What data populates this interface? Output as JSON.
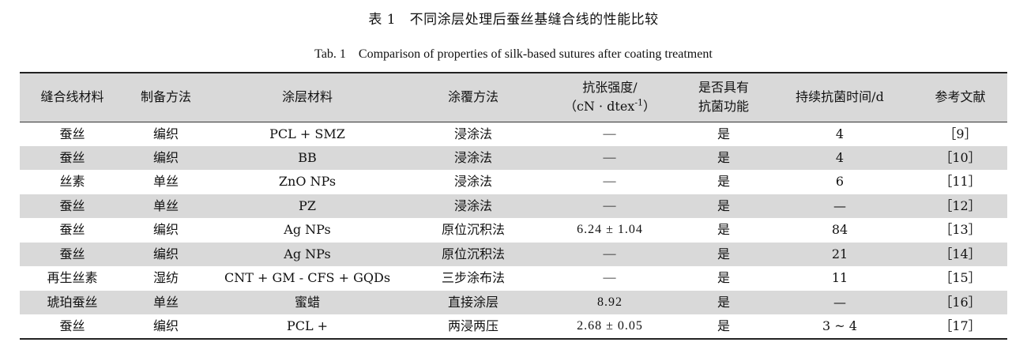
{
  "caption": {
    "cn": "表 1　不同涂层处理后蚕丝基缝合线的性能比较",
    "en": "Tab. 1　Comparison of properties of silk-based sutures after coating treatment"
  },
  "table": {
    "headers": {
      "material": "缝合线材料",
      "prep": "制备方法",
      "coating": "涂层材料",
      "method": "涂覆方法",
      "strength_line1": "抗张强度/",
      "strength_line2_pre": "（cN · dtex",
      "strength_line2_sup": "-1",
      "strength_line2_post": "）",
      "antibac_line1": "是否具有",
      "antibac_line2": "抗菌功能",
      "duration": "持续抗菌时间/d",
      "ref": "参考文献"
    },
    "rows": [
      {
        "material": "蚕丝",
        "prep": "编织",
        "coating": "PCL + SMZ",
        "method": "浸涂法",
        "strength": "—",
        "antibac": "是",
        "duration": "4",
        "ref": "［9］"
      },
      {
        "material": "蚕丝",
        "prep": "编织",
        "coating": "BB",
        "method": "浸涂法",
        "strength": "—",
        "antibac": "是",
        "duration": "4",
        "ref": "［10］"
      },
      {
        "material": "丝素",
        "prep": "单丝",
        "coating": "ZnO NPs",
        "method": "浸涂法",
        "strength": "—",
        "antibac": "是",
        "duration": "6",
        "ref": "［11］"
      },
      {
        "material": "蚕丝",
        "prep": "单丝",
        "coating": "PZ",
        "method": "浸涂法",
        "strength": "—",
        "antibac": "是",
        "duration": "—",
        "ref": "［12］"
      },
      {
        "material": "蚕丝",
        "prep": "编织",
        "coating": "Ag NPs",
        "method": "原位沉积法",
        "strength": "6.24 ± 1.04",
        "antibac": "是",
        "duration": "84",
        "ref": "［13］"
      },
      {
        "material": "蚕丝",
        "prep": "编织",
        "coating": "Ag NPs",
        "method": "原位沉积法",
        "strength": "—",
        "antibac": "是",
        "duration": "21",
        "ref": "［14］"
      },
      {
        "material": "再生丝素",
        "prep": "湿纺",
        "coating": "CNT + GM - CFS + GQDs",
        "method": "三步涂布法",
        "strength": "—",
        "antibac": "是",
        "duration": "11",
        "ref": "［15］"
      },
      {
        "material": "琥珀蚕丝",
        "prep": "单丝",
        "coating": "蜜蜡",
        "method": "直接涂层",
        "strength": "8.92",
        "antibac": "是",
        "duration": "—",
        "ref": "［16］"
      },
      {
        "material": "蚕丝",
        "prep": "编织",
        "coating": "PCL +",
        "method": "两浸两压",
        "strength": "2.68 ± 0.05",
        "antibac": "是",
        "duration": "3 ~ 4",
        "ref": "［17］"
      }
    ]
  }
}
